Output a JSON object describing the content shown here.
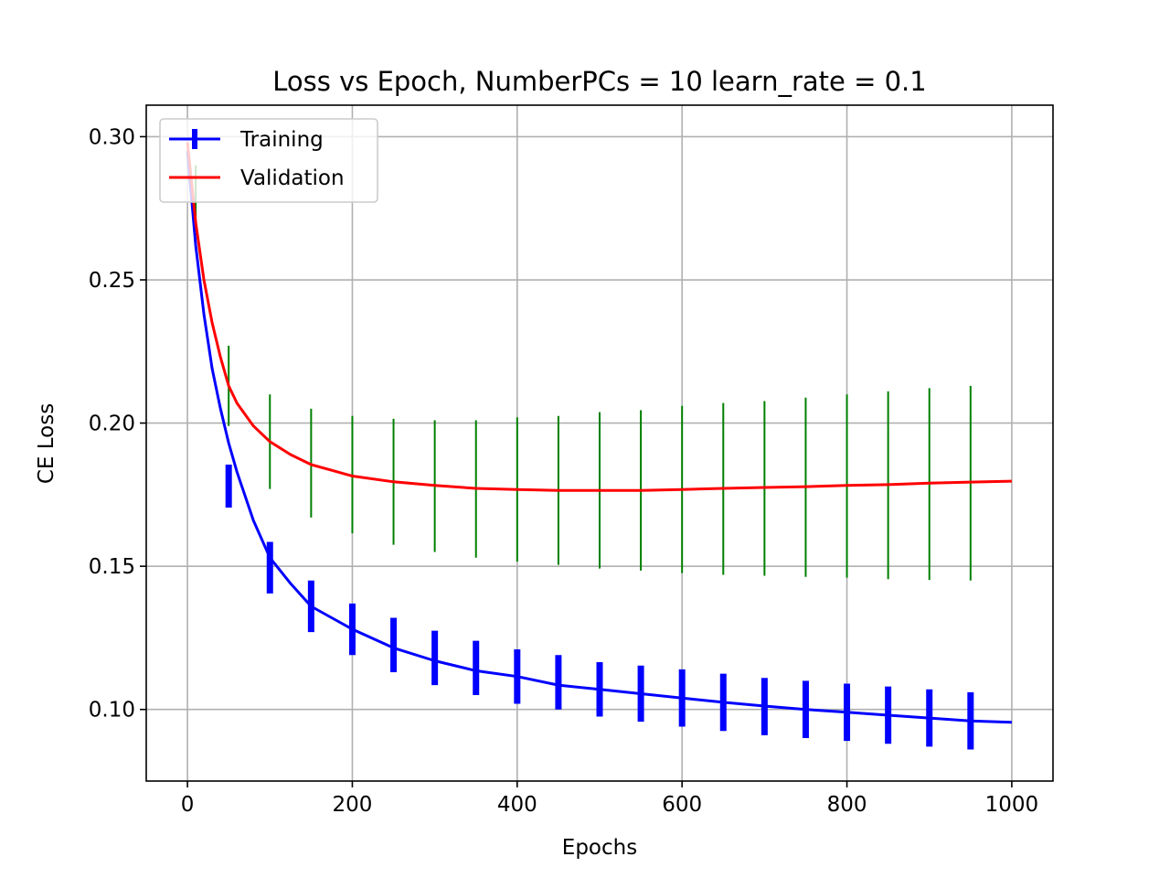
{
  "chart_data": {
    "type": "line",
    "title": "Loss vs Epoch, NumberPCs = 10 learn_rate = 0.1",
    "xlabel": "Epochs",
    "ylabel": "CE Loss",
    "xlim": [
      -50,
      1050
    ],
    "ylim": [
      0.075,
      0.311
    ],
    "xticks": [
      0,
      200,
      400,
      600,
      800,
      1000
    ],
    "yticks": [
      0.1,
      0.15,
      0.2,
      0.25,
      0.3
    ],
    "grid": true,
    "legend_position": "upper-left",
    "series": [
      {
        "name": "Training",
        "color": "#0000ff",
        "x": [
          0,
          10,
          20,
          30,
          40,
          50,
          60,
          80,
          100,
          125,
          150,
          175,
          200,
          250,
          300,
          350,
          400,
          450,
          500,
          550,
          600,
          650,
          700,
          750,
          800,
          850,
          900,
          950,
          1000
        ],
        "y": [
          0.295,
          0.262,
          0.238,
          0.219,
          0.205,
          0.193,
          0.183,
          0.166,
          0.153,
          0.144,
          0.136,
          0.132,
          0.128,
          0.1215,
          0.117,
          0.1135,
          0.1115,
          0.1085,
          0.107,
          0.1055,
          0.104,
          0.1025,
          0.1012,
          0.1,
          0.099,
          0.098,
          0.097,
          0.096,
          0.0955
        ],
        "errorbars": {
          "x": [
            50,
            100,
            150,
            200,
            250,
            300,
            350,
            400,
            450,
            500,
            550,
            600,
            650,
            700,
            750,
            800,
            850,
            900,
            950
          ],
          "y": [
            0.178,
            0.1495,
            0.136,
            0.128,
            0.1225,
            0.118,
            0.1145,
            0.1115,
            0.1095,
            0.107,
            0.1055,
            0.104,
            0.1025,
            0.101,
            0.1,
            0.099,
            0.098,
            0.097,
            0.096
          ],
          "err": [
            0.0075,
            0.009,
            0.009,
            0.009,
            0.0095,
            0.0095,
            0.0095,
            0.0095,
            0.0095,
            0.0095,
            0.0098,
            0.01,
            0.01,
            0.01,
            0.01,
            0.01,
            0.01,
            0.01,
            0.01
          ]
        }
      },
      {
        "name": "Validation",
        "color": "#ff0000",
        "x": [
          0,
          10,
          20,
          30,
          40,
          50,
          60,
          80,
          100,
          125,
          150,
          175,
          200,
          250,
          300,
          350,
          400,
          450,
          500,
          550,
          600,
          650,
          700,
          750,
          800,
          850,
          900,
          950,
          1000
        ],
        "y": [
          0.298,
          0.27,
          0.25,
          0.235,
          0.223,
          0.213,
          0.207,
          0.199,
          0.1935,
          0.189,
          0.1855,
          0.1835,
          0.1815,
          0.1795,
          0.1782,
          0.1772,
          0.1768,
          0.1765,
          0.1765,
          0.1765,
          0.1768,
          0.1772,
          0.1775,
          0.1778,
          0.1782,
          0.1785,
          0.179,
          0.1794,
          0.1797
        ],
        "errorbars": {
          "color": "#008000",
          "x": [
            10,
            50,
            100,
            150,
            200,
            250,
            300,
            350,
            400,
            450,
            500,
            550,
            600,
            650,
            700,
            750,
            800,
            850,
            900,
            950
          ],
          "y": [
            0.28,
            0.213,
            0.1935,
            0.186,
            0.182,
            0.1795,
            0.178,
            0.177,
            0.1768,
            0.1765,
            0.1765,
            0.1765,
            0.1768,
            0.177,
            0.1772,
            0.1776,
            0.178,
            0.1783,
            0.1787,
            0.179
          ],
          "err": [
            0.01,
            0.014,
            0.0165,
            0.019,
            0.0205,
            0.022,
            0.023,
            0.024,
            0.0252,
            0.026,
            0.0273,
            0.028,
            0.0292,
            0.03,
            0.0305,
            0.0313,
            0.032,
            0.0328,
            0.0335,
            0.034
          ]
        }
      }
    ]
  }
}
